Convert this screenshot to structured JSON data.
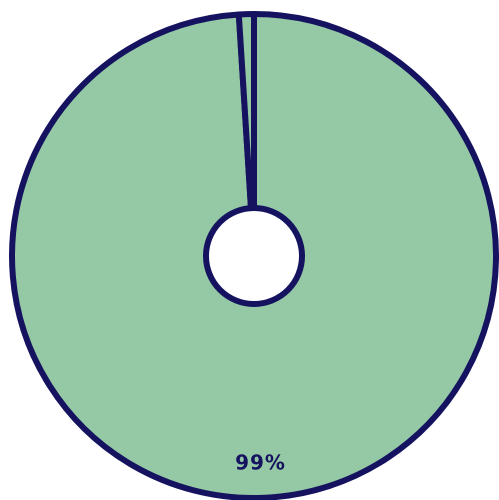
{
  "chart_data": {
    "type": "pie",
    "values": [
      99,
      1
    ],
    "labels": [
      "99%",
      ""
    ],
    "colors": {
      "slices": [
        "#95c9a5",
        "#95c9a5"
      ],
      "outline": "#15135f",
      "center": "#ffffff",
      "label": "#15135f"
    },
    "donut": true,
    "start_angle_deg": 0,
    "direction": "clockwise"
  }
}
